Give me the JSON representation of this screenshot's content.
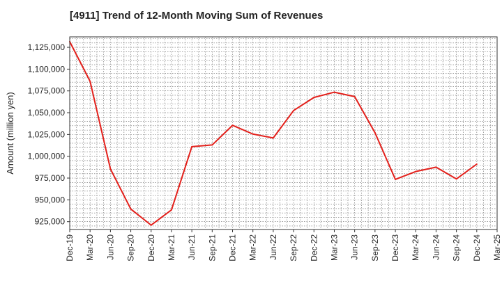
{
  "chart_data": {
    "type": "line",
    "title": "[4911]  Trend of 12-Month Moving Sum of Revenues",
    "xlabel": "",
    "ylabel": "Amount (million yen)",
    "ylim": [
      916000,
      1137000
    ],
    "yticks": [
      925000,
      950000,
      975000,
      1000000,
      1025000,
      1050000,
      1075000,
      1100000,
      1125000
    ],
    "ytick_labels": [
      "925,000",
      "950,000",
      "975,000",
      "1,000,000",
      "1,025,000",
      "1,050,000",
      "1,075,000",
      "1,100,000",
      "1,125,000"
    ],
    "xtick_labels": [
      "Dec-19",
      "Mar-20",
      "Jun-20",
      "Sep-20",
      "Dec-20",
      "Mar-21",
      "Jun-21",
      "Sep-21",
      "Dec-21",
      "Mar-22",
      "Jun-22",
      "Sep-22",
      "Dec-22",
      "Mar-23",
      "Jun-23",
      "Sep-23",
      "Dec-23",
      "Mar-24",
      "Jun-24",
      "Sep-24",
      "Dec-24",
      "Mar-25"
    ],
    "grid": true,
    "line_color": "#e3201b",
    "series": [
      {
        "x": [
          "Dec-19",
          "Mar-20",
          "Jun-20",
          "Sep-20",
          "Dec-20",
          "Mar-21",
          "Jun-21",
          "Sep-21",
          "Dec-21",
          "Mar-22",
          "Jun-22",
          "Sep-22",
          "Dec-22",
          "Mar-23",
          "Jun-23",
          "Sep-23",
          "Dec-23",
          "Mar-24",
          "Jun-24",
          "Sep-24",
          "Dec-24"
        ],
        "values": [
          1131500,
          1086000,
          985500,
          939500,
          921000,
          938500,
          1011000,
          1013000,
          1035500,
          1025500,
          1021000,
          1052500,
          1067500,
          1073500,
          1068500,
          1027000,
          973500,
          982500,
          987500,
          974000,
          991000
        ]
      }
    ]
  }
}
